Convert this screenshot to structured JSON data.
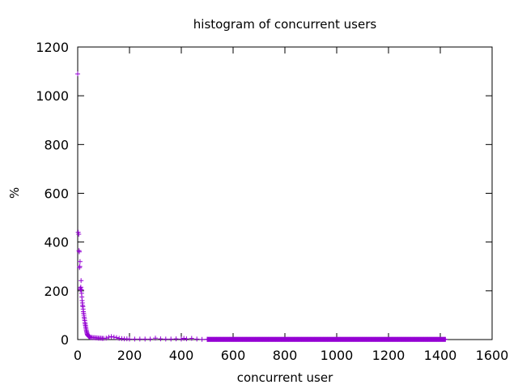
{
  "chart_data": {
    "type": "scatter",
    "title": "histogram of concurrent users",
    "xlabel": "concurrent user",
    "ylabel": "%",
    "xlim": [
      0,
      1600
    ],
    "ylim": [
      0,
      1200
    ],
    "x_ticks": [
      0,
      200,
      400,
      600,
      800,
      1000,
      1200,
      1400,
      1600
    ],
    "y_ticks": [
      0,
      200,
      400,
      600,
      800,
      1000,
      1200
    ],
    "grid": false,
    "legend": "none",
    "marker": "plus",
    "color": "#9400d3",
    "series": [
      {
        "points": [
          [
            0,
            1090
          ],
          [
            2,
            440
          ],
          [
            4,
            432
          ],
          [
            5,
            365
          ],
          [
            6,
            360
          ],
          [
            7,
            295
          ],
          [
            8,
            300
          ],
          [
            9,
            320
          ],
          [
            10,
            210
          ],
          [
            11,
            205
          ],
          [
            12,
            215
          ],
          [
            13,
            242
          ],
          [
            14,
            205
          ],
          [
            15,
            190
          ],
          [
            16,
            175
          ],
          [
            17,
            160
          ],
          [
            18,
            150
          ],
          [
            19,
            140
          ],
          [
            20,
            135
          ],
          [
            21,
            125
          ],
          [
            22,
            115
          ],
          [
            23,
            108
          ],
          [
            24,
            100
          ],
          [
            25,
            92
          ],
          [
            26,
            85
          ],
          [
            27,
            78
          ],
          [
            28,
            70
          ],
          [
            29,
            64
          ],
          [
            30,
            58
          ],
          [
            31,
            52
          ],
          [
            32,
            46
          ],
          [
            33,
            40
          ],
          [
            34,
            35
          ],
          [
            35,
            30
          ],
          [
            36,
            26
          ],
          [
            37,
            22
          ],
          [
            38,
            19
          ],
          [
            40,
            16
          ],
          [
            42,
            14
          ],
          [
            44,
            12
          ],
          [
            46,
            11
          ],
          [
            48,
            10
          ],
          [
            50,
            9
          ],
          [
            55,
            9
          ],
          [
            60,
            8
          ],
          [
            65,
            8
          ],
          [
            70,
            7
          ],
          [
            75,
            7
          ],
          [
            80,
            6
          ],
          [
            85,
            6
          ],
          [
            90,
            6
          ],
          [
            95,
            5
          ],
          [
            100,
            5
          ],
          [
            110,
            6
          ],
          [
            120,
            10
          ],
          [
            130,
            12
          ],
          [
            140,
            10
          ],
          [
            150,
            8
          ],
          [
            160,
            5
          ],
          [
            170,
            4
          ],
          [
            180,
            3
          ],
          [
            190,
            3
          ],
          [
            200,
            2
          ],
          [
            220,
            2
          ],
          [
            240,
            2
          ],
          [
            260,
            2
          ],
          [
            280,
            2
          ],
          [
            300,
            6
          ],
          [
            320,
            3
          ],
          [
            340,
            2
          ],
          [
            360,
            2
          ],
          [
            380,
            3
          ],
          [
            400,
            2
          ],
          [
            410,
            5
          ],
          [
            420,
            3
          ],
          [
            440,
            5
          ],
          [
            460,
            2
          ],
          [
            480,
            1
          ],
          [
            500,
            1
          ]
        ],
        "tail": {
          "x_start": 500,
          "x_end": 1420,
          "y": 1
        }
      }
    ]
  }
}
